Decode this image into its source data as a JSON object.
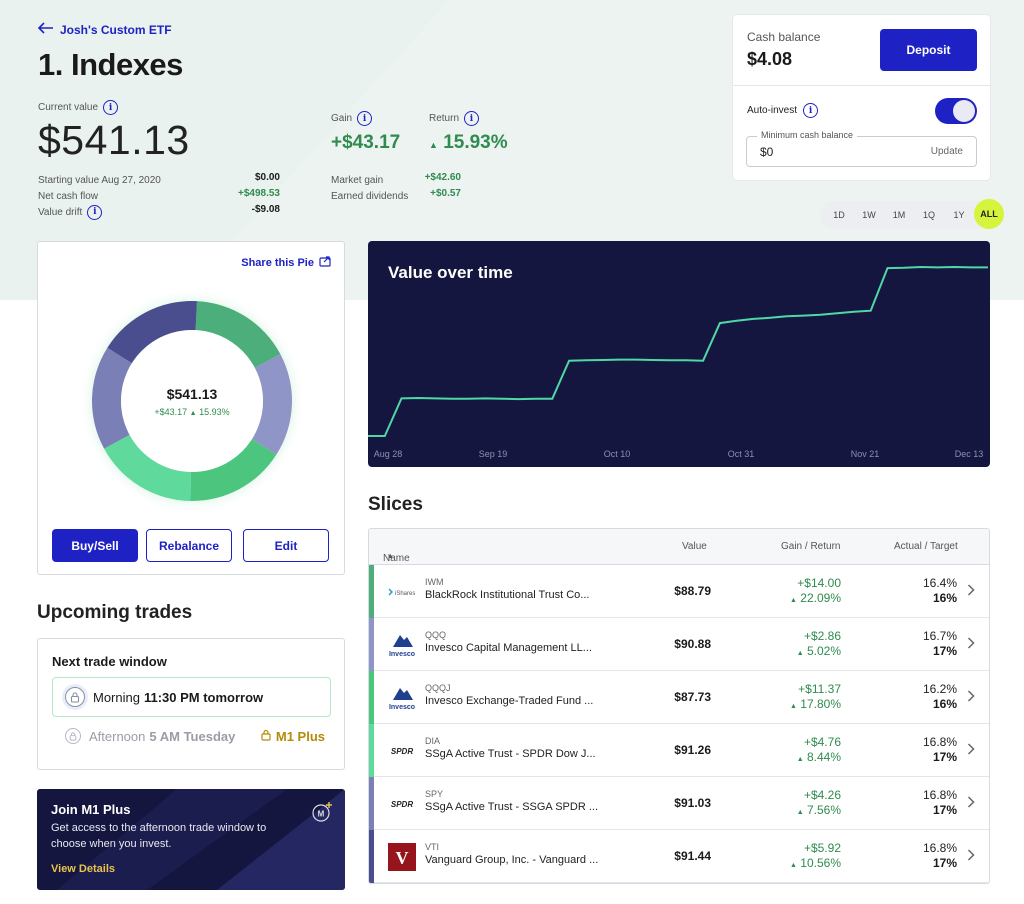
{
  "header": {
    "back_label": "Josh's Custom ETF",
    "title": "1. Indexes"
  },
  "summary": {
    "current_value_label": "Current value",
    "current_value": "$541.13",
    "gain_label": "Gain",
    "gain_value": "+$43.17",
    "return_label": "Return",
    "return_value": "15.93%",
    "starting_label": "Starting value Aug 27, 2020",
    "starting_value": "$0.00",
    "net_cash_label": "Net cash flow",
    "net_cash_value": "+$498.53",
    "drift_label": "Value drift",
    "drift_value": "-$9.08",
    "market_gain_label": "Market gain",
    "market_gain_value": "+$42.60",
    "dividends_label": "Earned dividends",
    "dividends_value": "+$0.57"
  },
  "cash": {
    "label": "Cash balance",
    "value": "$4.08",
    "deposit_label": "Deposit",
    "auto_invest_label": "Auto-invest",
    "auto_invest_on": true,
    "min_label": "Minimum cash balance",
    "min_value": "$0",
    "update_label": "Update"
  },
  "periods": [
    "1D",
    "1W",
    "1M",
    "1Q",
    "1Y",
    "ALL"
  ],
  "active_period": "ALL",
  "pie": {
    "share_label": "Share this Pie",
    "center_value": "$541.13",
    "center_gain": "+$43.17",
    "center_return": "15.93%",
    "buy_sell_label": "Buy/Sell",
    "rebalance_label": "Rebalance",
    "edit_label": "Edit",
    "segments": [
      {
        "name": "IWM",
        "percent": 16.4,
        "color": "#4cae7a"
      },
      {
        "name": "QQQ",
        "percent": 16.7,
        "color": "#8f95c6"
      },
      {
        "name": "QQQJ",
        "percent": 16.2,
        "color": "#4cc57f"
      },
      {
        "name": "DIA",
        "percent": 16.8,
        "color": "#5fd99c"
      },
      {
        "name": "SPY",
        "percent": 16.8,
        "color": "#7a7fb6"
      },
      {
        "name": "VTI",
        "percent": 16.8,
        "color": "#4a4e8e"
      }
    ]
  },
  "trades": {
    "section_title": "Upcoming trades",
    "window_title": "Next trade window",
    "morning_label": "Morning",
    "morning_time": "11:30 PM tomorrow",
    "afternoon_label": "Afternoon",
    "afternoon_time": "5 AM Tuesday",
    "plus_label": "M1 Plus"
  },
  "promo": {
    "title": "Join M1 Plus",
    "text": "Get access to the afternoon trade window to choose when you invest.",
    "link": "View Details"
  },
  "chart": {
    "title": "Value over time",
    "x_ticks": [
      "Aug 28",
      "Sep 19",
      "Oct 10",
      "Oct 31",
      "Nov 21",
      "Dec 13"
    ]
  },
  "chart_data": {
    "type": "line",
    "title": "Value over time",
    "x_ticks": [
      "Aug 28",
      "Sep 19",
      "Oct 10",
      "Oct 31",
      "Nov 21",
      "Dec 13"
    ],
    "series": [
      {
        "values": [
          0,
          0,
          100,
          101,
          100,
          99,
          99,
          100,
          99,
          98,
          99,
          99,
          200,
          201,
          202,
          203,
          203,
          202,
          201,
          201,
          200,
          300,
          306,
          311,
          314,
          318,
          320,
          322,
          326,
          330,
          333,
          446,
          447,
          449,
          448,
          449,
          448,
          448
        ]
      }
    ],
    "grid": false
  },
  "slices": {
    "title": "Slices",
    "columns": {
      "name": "Name",
      "value": "Value",
      "gain_return": "Gain / Return",
      "actual_target": "Actual / Target"
    },
    "rows": [
      {
        "ticker": "IWM",
        "name": "BlackRock Institutional Trust Co...",
        "value": "$88.79",
        "gain": "+$14.00",
        "return": "22.09%",
        "actual": "16.4%",
        "target": "16%",
        "color": "#4cae7a",
        "logo": "iShares"
      },
      {
        "ticker": "QQQ",
        "name": "Invesco Capital Management LL...",
        "value": "$90.88",
        "gain": "+$2.86",
        "return": "5.02%",
        "actual": "16.7%",
        "target": "17%",
        "color": "#8f95c6",
        "logo": "Invesco"
      },
      {
        "ticker": "QQQJ",
        "name": "Invesco Exchange-Traded Fund ...",
        "value": "$87.73",
        "gain": "+$11.37",
        "return": "17.80%",
        "actual": "16.2%",
        "target": "16%",
        "color": "#4cc57f",
        "logo": "Invesco"
      },
      {
        "ticker": "DIA",
        "name": "SSgA Active Trust - SPDR Dow J...",
        "value": "$91.26",
        "gain": "+$4.76",
        "return": "8.44%",
        "actual": "16.8%",
        "target": "17%",
        "color": "#5fd99c",
        "logo": "SPDR"
      },
      {
        "ticker": "SPY",
        "name": "SSgA Active Trust - SSGA SPDR ...",
        "value": "$91.03",
        "gain": "+$4.26",
        "return": "7.56%",
        "actual": "16.8%",
        "target": "17%",
        "color": "#7a7fb6",
        "logo": "SPDR"
      },
      {
        "ticker": "VTI",
        "name": "Vanguard Group, Inc. - Vanguard ...",
        "value": "$91.44",
        "gain": "+$5.92",
        "return": "10.56%",
        "actual": "16.8%",
        "target": "17%",
        "color": "#4a4e8e",
        "logo": "V"
      }
    ]
  }
}
